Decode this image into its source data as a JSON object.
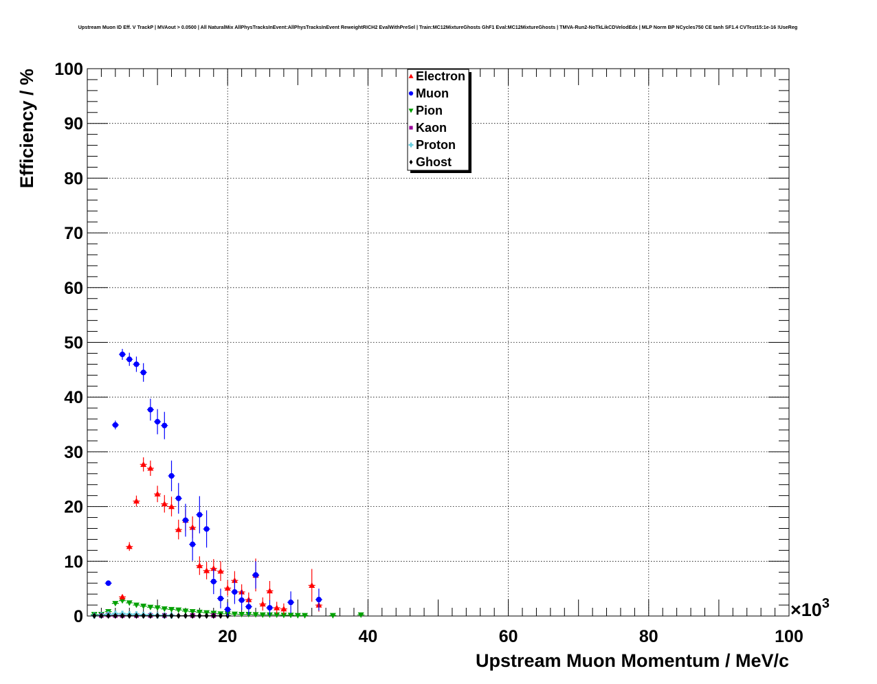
{
  "chart_data": {
    "type": "scatter",
    "title": "Upstream Muon ID Eff. V TrackP | MVAout > 0.0500 | All NaturalMix AllPhysTracksInEvent:AllPhysTracksInEvent ReweightRICH2 EvalWithPreSel | Train:MC12MixtureGhosts GhF1 Eval:MC12MixtureGhosts | TMVA-Run2-NoTkLikCDVelodEdx | MLP Norm BP NCycles750 CE tanh SF1.4 CVTest15:1e-16 !UseReg",
    "xlabel": "Upstream Muon Momentum / MeV/c",
    "ylabel": "Efficiency / %",
    "x_multiplier_label": "×10",
    "x_multiplier_exp": "3",
    "xlim": [
      0,
      100
    ],
    "ylim": [
      0,
      100
    ],
    "x_ticks": [
      "20",
      "40",
      "60",
      "80",
      "100"
    ],
    "x_tick_values": [
      20,
      40,
      60,
      80,
      100
    ],
    "y_ticks": [
      "0",
      "10",
      "20",
      "30",
      "40",
      "50",
      "60",
      "70",
      "80",
      "90",
      "100"
    ],
    "y_tick_values": [
      0,
      10,
      20,
      30,
      40,
      50,
      60,
      70,
      80,
      90,
      100
    ],
    "grid": true,
    "legend_position": "top-center",
    "series": [
      {
        "name": "Electron",
        "color": "#ff0000",
        "marker": "triangle-up",
        "points": [
          [
            5,
            3.5,
            0.4
          ],
          [
            6,
            12.7,
            0.8
          ],
          [
            7,
            21,
            1
          ],
          [
            8,
            27.7,
            1.3
          ],
          [
            9,
            27,
            1.4
          ],
          [
            10,
            22.3,
            1.5
          ],
          [
            11,
            20.5,
            1.6
          ],
          [
            12,
            20,
            1.8
          ],
          [
            13,
            15.8,
            1.8
          ],
          [
            14,
            17.5,
            2
          ],
          [
            15,
            16.2,
            2
          ],
          [
            16,
            9.2,
            1.7
          ],
          [
            17,
            8.3,
            1.6
          ],
          [
            18,
            8.7,
            1.7
          ],
          [
            19,
            8.2,
            1.8
          ],
          [
            20,
            5.1,
            1.4
          ],
          [
            21,
            6.5,
            1.7
          ],
          [
            22,
            4.4,
            1.4
          ],
          [
            23,
            3,
            1.3
          ],
          [
            24,
            7.5,
            3
          ],
          [
            25,
            2.2,
            1.2
          ],
          [
            26,
            4.6,
            1.8
          ],
          [
            27,
            1.5,
            1.1
          ],
          [
            28,
            1.3,
            1
          ],
          [
            32,
            5.6,
            3
          ],
          [
            33,
            2,
            1.2
          ]
        ]
      },
      {
        "name": "Muon",
        "color": "#0000ff",
        "marker": "circle",
        "points": [
          [
            3,
            6,
            0.4
          ],
          [
            4,
            34.9,
            0.8
          ],
          [
            5,
            47.8,
            1
          ],
          [
            6,
            46.9,
            1.2
          ],
          [
            7,
            46,
            1.4
          ],
          [
            8,
            44.5,
            1.7
          ],
          [
            9,
            37.7,
            2
          ],
          [
            10,
            35.5,
            2.3
          ],
          [
            11,
            34.8,
            2.5
          ],
          [
            12,
            25.6,
            2.8
          ],
          [
            13,
            21.5,
            2.8
          ],
          [
            14,
            17.5,
            3
          ],
          [
            15,
            13.1,
            3
          ],
          [
            16,
            18.5,
            3.4
          ],
          [
            17,
            15.9,
            3.4
          ],
          [
            18,
            6.3,
            2.3
          ],
          [
            19,
            3.2,
            1.8
          ],
          [
            20,
            1.2,
            1.3
          ],
          [
            21,
            4.4,
            2.2
          ],
          [
            22,
            2.9,
            1.8
          ],
          [
            23,
            1.7,
            1.5
          ],
          [
            24,
            7.5,
            2.5
          ],
          [
            26,
            1.5,
            1.4
          ],
          [
            29,
            2.5,
            2
          ],
          [
            33,
            3,
            2
          ]
        ]
      },
      {
        "name": "Pion",
        "color": "#00a000",
        "marker": "triangle-down",
        "points": [
          [
            1,
            0.3,
            0.05
          ],
          [
            2,
            0.3,
            0.05
          ],
          [
            3,
            0.8,
            0.1
          ],
          [
            4,
            2.3,
            0.15
          ],
          [
            5,
            2.8,
            0.2
          ],
          [
            6,
            2.4,
            0.2
          ],
          [
            7,
            2,
            0.2
          ],
          [
            8,
            1.8,
            0.2
          ],
          [
            9,
            1.6,
            0.2
          ],
          [
            10,
            1.5,
            0.2
          ],
          [
            11,
            1.3,
            0.2
          ],
          [
            12,
            1.2,
            0.2
          ],
          [
            13,
            1.1,
            0.2
          ],
          [
            14,
            0.9,
            0.2
          ],
          [
            15,
            0.8,
            0.2
          ],
          [
            16,
            0.7,
            0.2
          ],
          [
            17,
            0.6,
            0.2
          ],
          [
            18,
            0.5,
            0.2
          ],
          [
            19,
            0.4,
            0.2
          ],
          [
            20,
            0.4,
            0.2
          ],
          [
            21,
            0.35,
            0.15
          ],
          [
            22,
            0.3,
            0.15
          ],
          [
            23,
            0.3,
            0.15
          ],
          [
            24,
            0.25,
            0.15
          ],
          [
            25,
            0.2,
            0.15
          ],
          [
            26,
            0.2,
            0.1
          ],
          [
            27,
            0.2,
            0.1
          ],
          [
            28,
            0.15,
            0.1
          ],
          [
            29,
            0.15,
            0.1
          ],
          [
            30,
            0.1,
            0.1
          ],
          [
            31,
            0.1,
            0.1
          ],
          [
            35,
            0.1,
            0.1
          ],
          [
            39,
            0.2,
            0.1
          ]
        ]
      },
      {
        "name": "Kaon",
        "color": "#990099",
        "marker": "square",
        "points": [
          [
            2,
            0.1,
            0.05
          ],
          [
            3,
            0.2,
            0.05
          ],
          [
            4,
            0.1,
            0.05
          ],
          [
            5,
            0.1,
            0.05
          ],
          [
            7,
            0.1,
            0.05
          ],
          [
            9,
            0.1,
            0.05
          ],
          [
            11,
            0.1,
            0.05
          ],
          [
            15,
            0.1,
            0.05
          ],
          [
            18,
            0.1,
            0.05
          ],
          [
            24,
            7.4,
            0.3
          ]
        ]
      },
      {
        "name": "Proton",
        "color": "#66ccdd",
        "marker": "cross",
        "points": [
          [
            1,
            0.1,
            0.05
          ],
          [
            2,
            0.15,
            0.05
          ],
          [
            3,
            0.3,
            0.1
          ],
          [
            4,
            0.4,
            0.1
          ],
          [
            5,
            0.4,
            0.1
          ],
          [
            6,
            0.3,
            0.1
          ],
          [
            7,
            0.3,
            0.1
          ],
          [
            8,
            0.2,
            0.1
          ],
          [
            9,
            0.2,
            0.1
          ],
          [
            10,
            0.1,
            0.05
          ],
          [
            11,
            0.1,
            0.05
          ],
          [
            12,
            0.1,
            0.05
          ]
        ]
      },
      {
        "name": "Ghost",
        "color": "#000000",
        "marker": "diamond",
        "points": [
          [
            1,
            0.05,
            0.02
          ],
          [
            2,
            0.05,
            0.02
          ],
          [
            3,
            0.05,
            0.02
          ],
          [
            4,
            0.05,
            0.02
          ],
          [
            5,
            0.05,
            0.02
          ],
          [
            6,
            0.05,
            0.02
          ],
          [
            7,
            0.05,
            0.02
          ],
          [
            8,
            0.05,
            0.02
          ],
          [
            9,
            0.05,
            0.02
          ],
          [
            10,
            0.05,
            0.02
          ],
          [
            11,
            0.05,
            0.02
          ],
          [
            12,
            0.05,
            0.02
          ],
          [
            13,
            0.05,
            0.02
          ],
          [
            14,
            0.05,
            0.02
          ],
          [
            15,
            0.05,
            0.02
          ],
          [
            16,
            0.05,
            0.02
          ],
          [
            17,
            0.05,
            0.02
          ],
          [
            18,
            0.05,
            0.02
          ],
          [
            19,
            0.05,
            0.02
          ],
          [
            20,
            0.05,
            0.02
          ]
        ]
      }
    ]
  }
}
